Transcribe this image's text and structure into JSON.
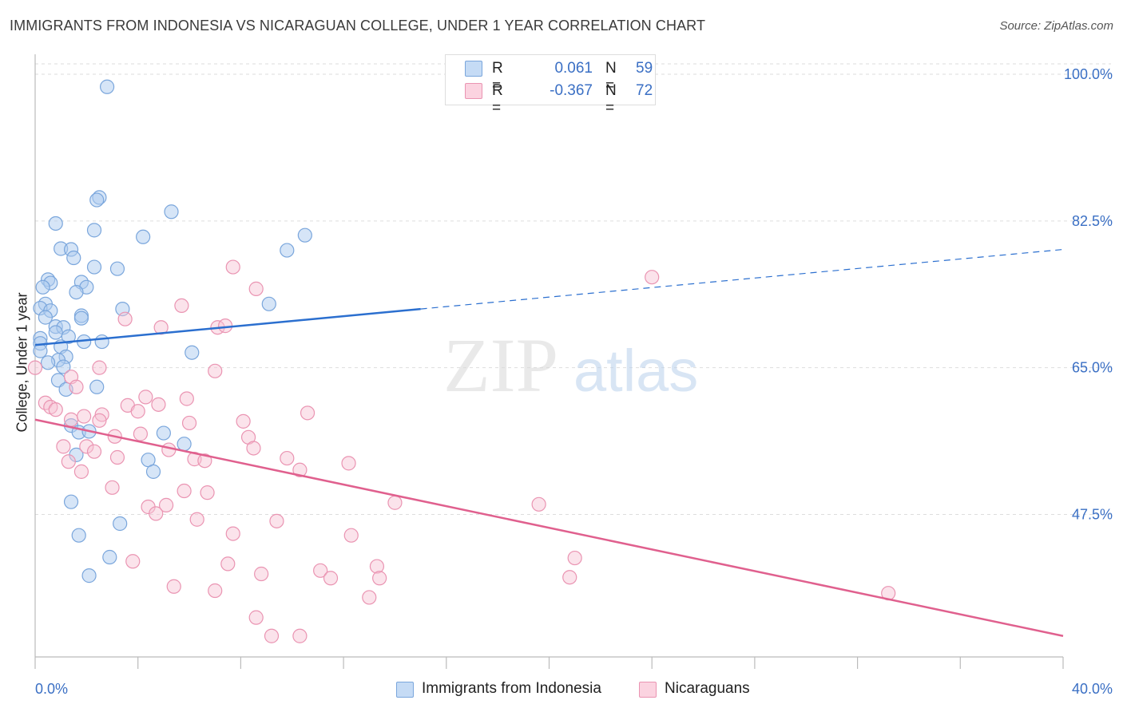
{
  "header": {
    "title": "IMMIGRANTS FROM INDONESIA VS NICARAGUAN COLLEGE, UNDER 1 YEAR CORRELATION CHART",
    "source": "Source: ZipAtlas.com"
  },
  "legend_top": {
    "rows": [
      {
        "r_label": "R =",
        "r_value": "0.061",
        "n_label": "N =",
        "n_value": "59"
      },
      {
        "r_label": "R =",
        "r_value": "-0.367",
        "n_label": "N =",
        "n_value": "72"
      }
    ]
  },
  "legend_bottom": {
    "series_a": "Immigrants from Indonesia",
    "series_b": "Nicaraguans"
  },
  "watermark": {
    "zip": "ZIP",
    "atlas": "atlas"
  },
  "colors": {
    "blue_fill": "#aecbf0",
    "blue_stroke": "#7aa6dc",
    "blue_line": "#2b6fcf",
    "pink_fill": "#f7c1d2",
    "pink_stroke": "#ea94b2",
    "pink_line": "#e0608e",
    "tick_text": "#3a6fc4",
    "grid": "#dddddd"
  },
  "chart_data": {
    "type": "scatter",
    "title": "IMMIGRANTS FROM INDONESIA VS NICARAGUAN COLLEGE, UNDER 1 YEAR CORRELATION CHART",
    "xlabel": "",
    "ylabel": "College, Under 1 year",
    "xlim": [
      0,
      40
    ],
    "ylim": [
      30.5,
      102
    ],
    "x_tick_labels": [
      "0.0%",
      "40.0%"
    ],
    "y_ticks": [
      47.5,
      65.0,
      82.5,
      100.0
    ],
    "y_tick_labels": [
      "47.5%",
      "65.0%",
      "82.5%",
      "100.0%"
    ],
    "grid": true,
    "legend_position": "top-center",
    "series": [
      {
        "name": "Immigrants from Indonesia",
        "r": 0.061,
        "n": 59,
        "trend": {
          "x0": 0,
          "y0": 67.7,
          "x1": 15,
          "y1": 72.0,
          "dashed_to_x": 40,
          "dashed_to_y": 79.1
        },
        "points": [
          [
            2.8,
            98.5
          ],
          [
            2.5,
            85.3
          ],
          [
            2.4,
            85.0
          ],
          [
            5.3,
            83.6
          ],
          [
            0.8,
            82.2
          ],
          [
            2.3,
            81.4
          ],
          [
            4.2,
            80.6
          ],
          [
            10.5,
            80.8
          ],
          [
            1.0,
            79.2
          ],
          [
            1.4,
            79.1
          ],
          [
            9.8,
            79.0
          ],
          [
            1.5,
            78.1
          ],
          [
            2.3,
            77.0
          ],
          [
            0.5,
            75.5
          ],
          [
            1.8,
            75.2
          ],
          [
            0.6,
            75.1
          ],
          [
            0.3,
            74.6
          ],
          [
            2.0,
            74.6
          ],
          [
            1.6,
            74.0
          ],
          [
            9.1,
            72.6
          ],
          [
            0.4,
            72.6
          ],
          [
            0.2,
            72.1
          ],
          [
            0.6,
            71.8
          ],
          [
            3.4,
            72.0
          ],
          [
            1.8,
            71.2
          ],
          [
            0.4,
            71.0
          ],
          [
            1.8,
            70.9
          ],
          [
            0.8,
            69.9
          ],
          [
            1.1,
            69.8
          ],
          [
            0.8,
            69.2
          ],
          [
            1.3,
            68.7
          ],
          [
            0.2,
            68.5
          ],
          [
            0.2,
            67.9
          ],
          [
            2.6,
            68.1
          ],
          [
            1.9,
            68.1
          ],
          [
            1.0,
            67.5
          ],
          [
            0.2,
            67.0
          ],
          [
            6.1,
            66.8
          ],
          [
            1.2,
            66.3
          ],
          [
            0.9,
            65.9
          ],
          [
            0.5,
            65.6
          ],
          [
            1.1,
            65.1
          ],
          [
            0.9,
            63.5
          ],
          [
            2.4,
            62.7
          ],
          [
            1.2,
            62.4
          ],
          [
            1.4,
            58.1
          ],
          [
            1.7,
            57.3
          ],
          [
            2.1,
            57.4
          ],
          [
            5.0,
            57.2
          ],
          [
            5.8,
            55.9
          ],
          [
            1.6,
            54.6
          ],
          [
            4.4,
            54.0
          ],
          [
            4.6,
            52.6
          ],
          [
            1.4,
            49.0
          ],
          [
            3.3,
            46.4
          ],
          [
            1.7,
            45.0
          ],
          [
            2.9,
            42.4
          ],
          [
            2.1,
            40.2
          ],
          [
            3.2,
            76.8
          ]
        ]
      },
      {
        "name": "Nicaraguans",
        "r": -0.367,
        "n": 72,
        "trend": {
          "x0": 0,
          "y0": 58.8,
          "x1": 40,
          "y1": 33.0
        },
        "points": [
          [
            0.0,
            65.0
          ],
          [
            24.0,
            75.8
          ],
          [
            7.7,
            77.0
          ],
          [
            8.6,
            74.4
          ],
          [
            5.7,
            72.4
          ],
          [
            3.5,
            70.8
          ],
          [
            4.9,
            69.8
          ],
          [
            7.1,
            69.8
          ],
          [
            7.4,
            70.0
          ],
          [
            2.5,
            65.0
          ],
          [
            7.0,
            64.6
          ],
          [
            1.4,
            63.9
          ],
          [
            1.6,
            62.7
          ],
          [
            4.3,
            61.5
          ],
          [
            5.9,
            61.3
          ],
          [
            0.4,
            60.8
          ],
          [
            4.8,
            60.6
          ],
          [
            3.6,
            60.5
          ],
          [
            0.6,
            60.3
          ],
          [
            0.8,
            60.0
          ],
          [
            4.0,
            59.8
          ],
          [
            10.6,
            59.6
          ],
          [
            1.4,
            58.8
          ],
          [
            1.9,
            59.2
          ],
          [
            2.6,
            59.4
          ],
          [
            2.5,
            58.7
          ],
          [
            6.0,
            58.4
          ],
          [
            8.1,
            58.6
          ],
          [
            4.1,
            57.1
          ],
          [
            3.1,
            56.8
          ],
          [
            8.3,
            56.7
          ],
          [
            1.1,
            55.6
          ],
          [
            2.0,
            55.6
          ],
          [
            2.3,
            55.0
          ],
          [
            5.2,
            55.2
          ],
          [
            8.5,
            55.4
          ],
          [
            3.2,
            54.3
          ],
          [
            6.2,
            54.1
          ],
          [
            6.6,
            53.9
          ],
          [
            9.8,
            54.2
          ],
          [
            12.2,
            53.6
          ],
          [
            1.3,
            53.8
          ],
          [
            1.8,
            52.6
          ],
          [
            10.3,
            52.8
          ],
          [
            3.0,
            50.7
          ],
          [
            5.8,
            50.3
          ],
          [
            6.7,
            50.1
          ],
          [
            14.0,
            48.9
          ],
          [
            19.6,
            48.7
          ],
          [
            4.4,
            48.4
          ],
          [
            5.1,
            48.6
          ],
          [
            4.7,
            47.6
          ],
          [
            6.3,
            46.9
          ],
          [
            9.4,
            46.7
          ],
          [
            7.7,
            45.2
          ],
          [
            12.3,
            45.0
          ],
          [
            21.0,
            42.3
          ],
          [
            3.8,
            41.9
          ],
          [
            7.5,
            41.6
          ],
          [
            13.3,
            41.3
          ],
          [
            11.1,
            40.8
          ],
          [
            8.8,
            40.4
          ],
          [
            11.5,
            39.9
          ],
          [
            20.8,
            40.0
          ],
          [
            13.4,
            39.9
          ],
          [
            5.4,
            38.9
          ],
          [
            7.0,
            38.4
          ],
          [
            13.0,
            37.6
          ],
          [
            33.2,
            38.1
          ],
          [
            8.6,
            35.2
          ],
          [
            9.2,
            33.0
          ],
          [
            10.3,
            33.0
          ]
        ]
      }
    ]
  }
}
